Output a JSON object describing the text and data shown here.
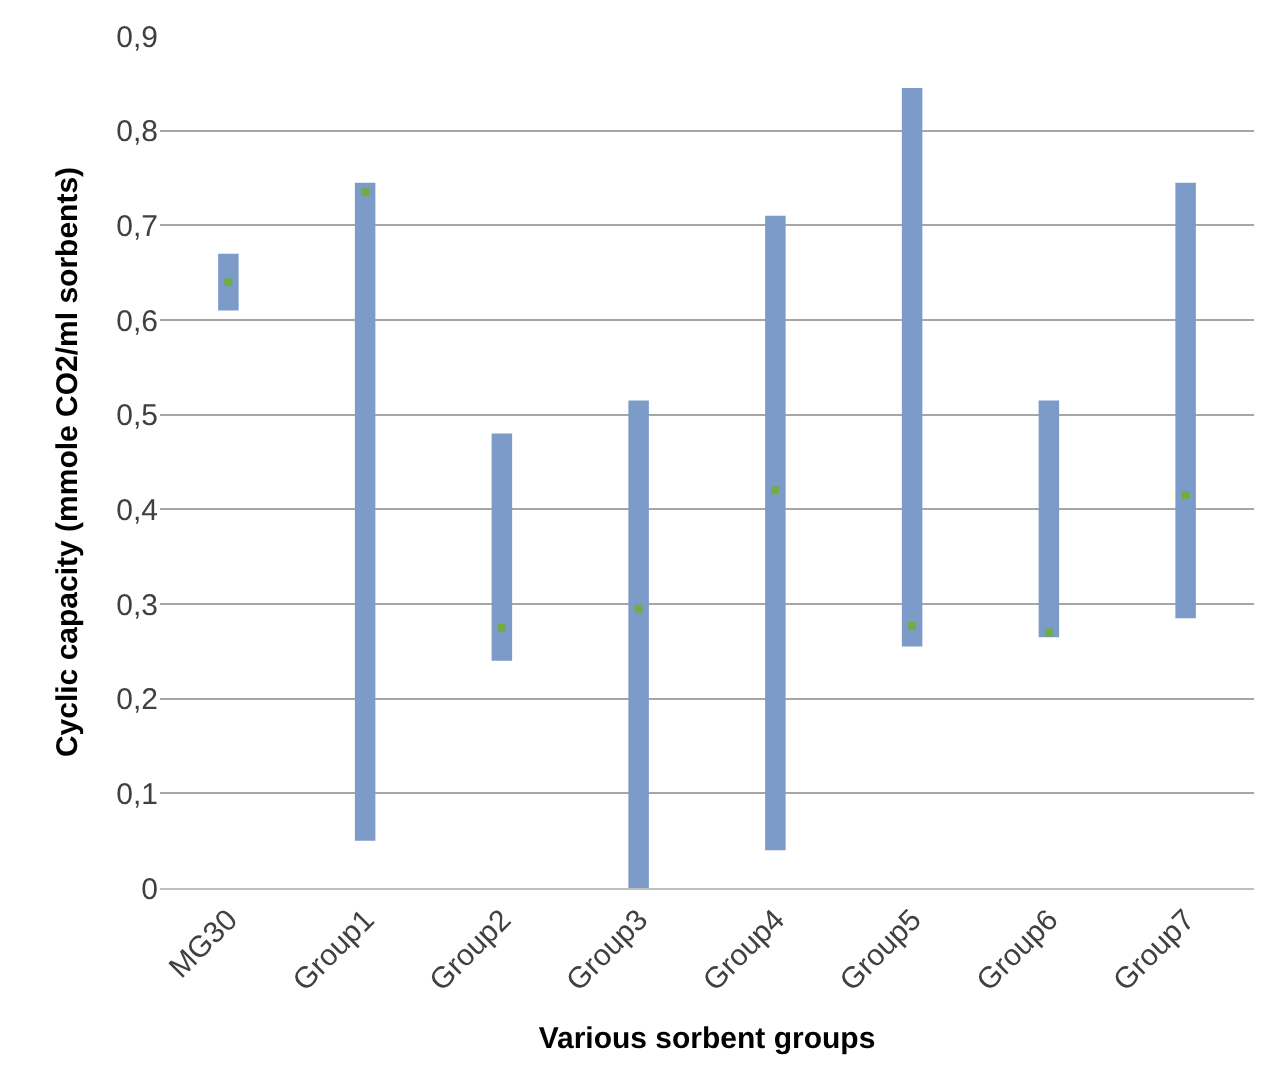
{
  "chart_data": {
    "type": "bar",
    "xlabel": "Various sorbent groups",
    "ylabel": "Cyclic capacity (mmole CO2/ml sorbents)",
    "categories": [
      "MG30",
      "Group1",
      "Group2",
      "Group3",
      "Group4",
      "Group5",
      "Group6",
      "Group7"
    ],
    "series": [
      {
        "color": "#7d9bc9",
        "base": [
          0.61,
          0.05,
          0.24,
          0.0,
          0.04,
          0.255,
          0.265,
          0.285
        ],
        "values": [
          0.06,
          0.695,
          0.24,
          0.515,
          0.67,
          0.59,
          0.25,
          0.46
        ]
      },
      {
        "type": "scatter",
        "color": "#70ad47",
        "x": [
          "MG30",
          "Group1",
          "Group2",
          "Group3",
          "Group4",
          "Group5",
          "Group6",
          "Group7"
        ],
        "values": [
          0.64,
          0.735,
          0.275,
          0.295,
          0.42,
          0.277,
          0.27,
          0.415
        ]
      }
    ],
    "ylim": [
      0,
      0.9
    ],
    "yticks": [
      0,
      {
        "value": 0.1,
        "label": "0,1"
      },
      {
        "value": 0.2,
        "label": "0,2"
      },
      {
        "value": 0.3,
        "label": "0,3"
      },
      {
        "value": 0.4,
        "label": "0,4"
      },
      {
        "value": 0.5,
        "label": "0,5"
      },
      {
        "value": 0.6,
        "label": "0,6"
      },
      {
        "value": 0.7,
        "label": "0,7"
      },
      {
        "value": 0.8,
        "label": "0,8"
      },
      {
        "value": 0.9,
        "label": "0,9"
      }
    ],
    "grid": "y"
  }
}
